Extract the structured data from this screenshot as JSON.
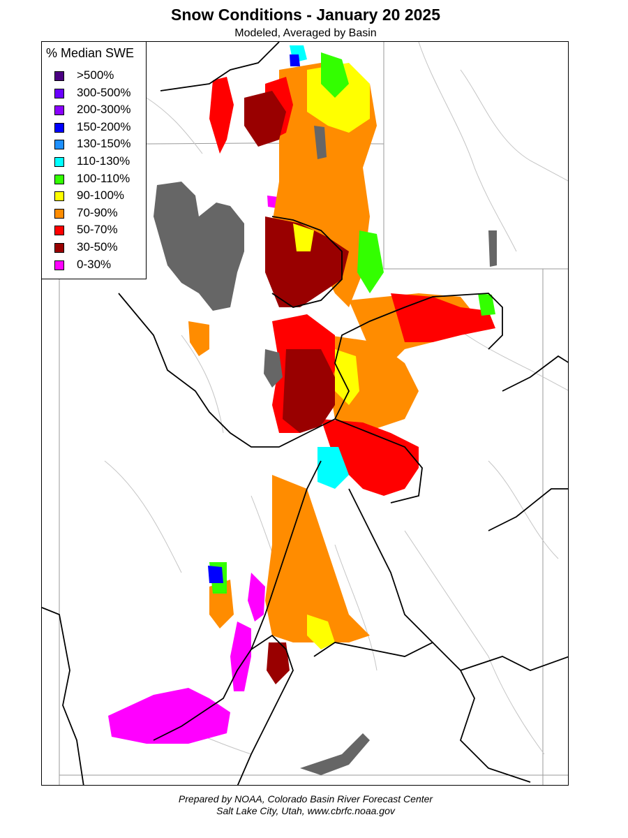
{
  "title": "Snow Conditions - January 20 2025",
  "subtitle": "Modeled, Averaged by Basin",
  "legend": {
    "title": "% Median SWE",
    "items": [
      {
        "label": ">500%",
        "color": "#4b0082"
      },
      {
        "label": "300-500%",
        "color": "#6a00ff"
      },
      {
        "label": "200-300%",
        "color": "#8a00ff"
      },
      {
        "label": "150-200%",
        "color": "#0000ff"
      },
      {
        "label": "130-150%",
        "color": "#1e90ff"
      },
      {
        "label": "110-130%",
        "color": "#00ffff"
      },
      {
        "label": "100-110%",
        "color": "#33ff00"
      },
      {
        "label": "90-100%",
        "color": "#ffff00"
      },
      {
        "label": "70-90%",
        "color": "#ff8c00"
      },
      {
        "label": "50-70%",
        "color": "#ff0000"
      },
      {
        "label": "30-50%",
        "color": "#990000"
      },
      {
        "label": "0-30%",
        "color": "#ff00ff"
      }
    ]
  },
  "colors": {
    "water": "#666666",
    "state_border": "#999999",
    "basin_border": "#000000",
    "river": "#bbbbbb"
  },
  "footer": {
    "line1": "Prepared by NOAA, Colorado Basin River Forecast Center",
    "line2": "Salt Lake City, Utah, www.cbrfc.noaa.gov"
  }
}
